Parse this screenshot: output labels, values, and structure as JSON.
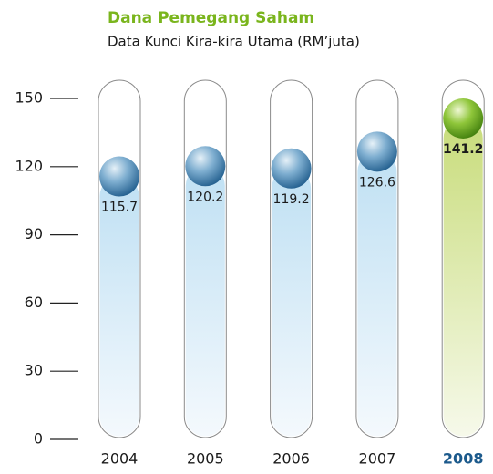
{
  "chart_data": {
    "type": "tube",
    "title": "Dana Pemegang Saham",
    "subtitle": "Data Kunci Kira-kira Utama (RM’juta)",
    "categories": [
      "2004",
      "2005",
      "2006",
      "2007",
      "2008"
    ],
    "values": [
      115.7,
      120.2,
      119.2,
      126.6,
      141.2
    ],
    "color": "#4a86b5",
    "highlight": 4,
    "highlight_color": "#7ab51d",
    "ylim": [
      0,
      150
    ],
    "yticks": [
      0,
      30,
      60,
      90,
      120,
      150
    ]
  }
}
